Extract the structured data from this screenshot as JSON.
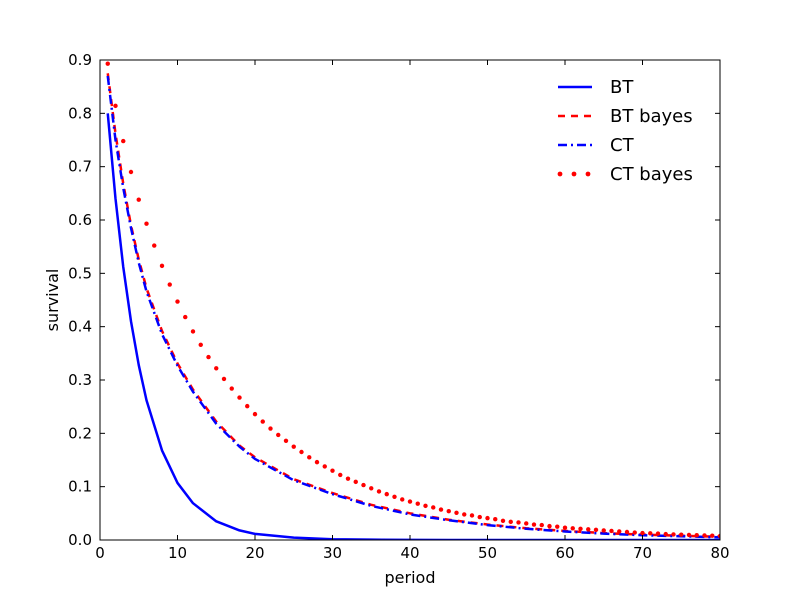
{
  "chart_data": {
    "type": "line",
    "title": "",
    "xlabel": "period",
    "ylabel": "survival",
    "xlim": [
      0,
      80
    ],
    "ylim": [
      0.0,
      0.9
    ],
    "x_ticks": [
      "0",
      "10",
      "20",
      "30",
      "40",
      "50",
      "60",
      "70",
      "80"
    ],
    "y_ticks": [
      "0.0",
      "0.1",
      "0.2",
      "0.3",
      "0.4",
      "0.5",
      "0.6",
      "0.7",
      "0.8",
      "0.9"
    ],
    "grid": false,
    "legend_position": "top-right",
    "series": [
      {
        "name": "BT",
        "color": "#0000ff",
        "style": "solid",
        "x": [
          1,
          2,
          3,
          4,
          5,
          6,
          8,
          10,
          12,
          15,
          18,
          20,
          25,
          30,
          35,
          40,
          45,
          50,
          60,
          70,
          80
        ],
        "y": [
          0.8,
          0.64,
          0.512,
          0.41,
          0.328,
          0.262,
          0.168,
          0.107,
          0.069,
          0.035,
          0.018,
          0.0115,
          0.0045,
          0.0015,
          0.0006,
          0.0002,
          0.0001,
          0.0,
          0.0,
          0.0,
          0.0
        ]
      },
      {
        "name": "BT bayes",
        "color": "#ff0000",
        "style": "dashed",
        "x": [
          1,
          2,
          3,
          4,
          5,
          6,
          8,
          10,
          12,
          15,
          18,
          20,
          25,
          30,
          35,
          40,
          45,
          50,
          55,
          60,
          65,
          70,
          75,
          80
        ],
        "y": [
          0.875,
          0.762,
          0.668,
          0.59,
          0.526,
          0.472,
          0.392,
          0.331,
          0.282,
          0.222,
          0.177,
          0.155,
          0.114,
          0.088,
          0.066,
          0.05,
          0.038,
          0.029,
          0.022,
          0.017,
          0.013,
          0.01,
          0.008,
          0.006
        ]
      },
      {
        "name": "CT",
        "color": "#0000ff",
        "style": "dashdot",
        "x": [
          1,
          2,
          3,
          4,
          5,
          6,
          8,
          10,
          12,
          15,
          18,
          20,
          25,
          30,
          35,
          40,
          45,
          50,
          55,
          60,
          65,
          70,
          75,
          80
        ],
        "y": [
          0.87,
          0.75,
          0.66,
          0.585,
          0.52,
          0.466,
          0.386,
          0.327,
          0.278,
          0.218,
          0.175,
          0.152,
          0.112,
          0.086,
          0.064,
          0.048,
          0.037,
          0.028,
          0.021,
          0.016,
          0.012,
          0.009,
          0.007,
          0.005
        ]
      },
      {
        "name": "CT bayes",
        "color": "#ff0000",
        "style": "dotted",
        "x": [
          1,
          2,
          3,
          4,
          5,
          6,
          7,
          8,
          9,
          10,
          11,
          12,
          13,
          14,
          15,
          16,
          17,
          18,
          19,
          20,
          21,
          22,
          23,
          24,
          25,
          26,
          27,
          28,
          29,
          30,
          31,
          32,
          33,
          34,
          35,
          36,
          37,
          38,
          39,
          40,
          41,
          42,
          43,
          44,
          45,
          46,
          47,
          48,
          49,
          50,
          51,
          52,
          53,
          54,
          55,
          56,
          57,
          58,
          59,
          60,
          61,
          62,
          63,
          64,
          65,
          66,
          67,
          68,
          69,
          70,
          71,
          72,
          73,
          74,
          75,
          76,
          77,
          78,
          79,
          80
        ],
        "y": [
          0.893,
          0.814,
          0.748,
          0.69,
          0.638,
          0.593,
          0.552,
          0.514,
          0.479,
          0.447,
          0.418,
          0.391,
          0.366,
          0.343,
          0.322,
          0.302,
          0.284,
          0.267,
          0.251,
          0.236,
          0.222,
          0.209,
          0.197,
          0.186,
          0.175,
          0.165,
          0.155,
          0.146,
          0.138,
          0.13,
          0.122,
          0.115,
          0.109,
          0.103,
          0.097,
          0.091,
          0.086,
          0.081,
          0.076,
          0.072,
          0.068,
          0.064,
          0.061,
          0.057,
          0.054,
          0.051,
          0.048,
          0.046,
          0.043,
          0.041,
          0.039,
          0.036,
          0.034,
          0.033,
          0.031,
          0.029,
          0.028,
          0.026,
          0.025,
          0.023,
          0.022,
          0.021,
          0.02,
          0.019,
          0.018,
          0.017,
          0.016,
          0.015,
          0.014,
          0.013,
          0.0125,
          0.012,
          0.011,
          0.0105,
          0.01,
          0.0095,
          0.009,
          0.0085,
          0.008,
          0.0075
        ]
      }
    ]
  }
}
